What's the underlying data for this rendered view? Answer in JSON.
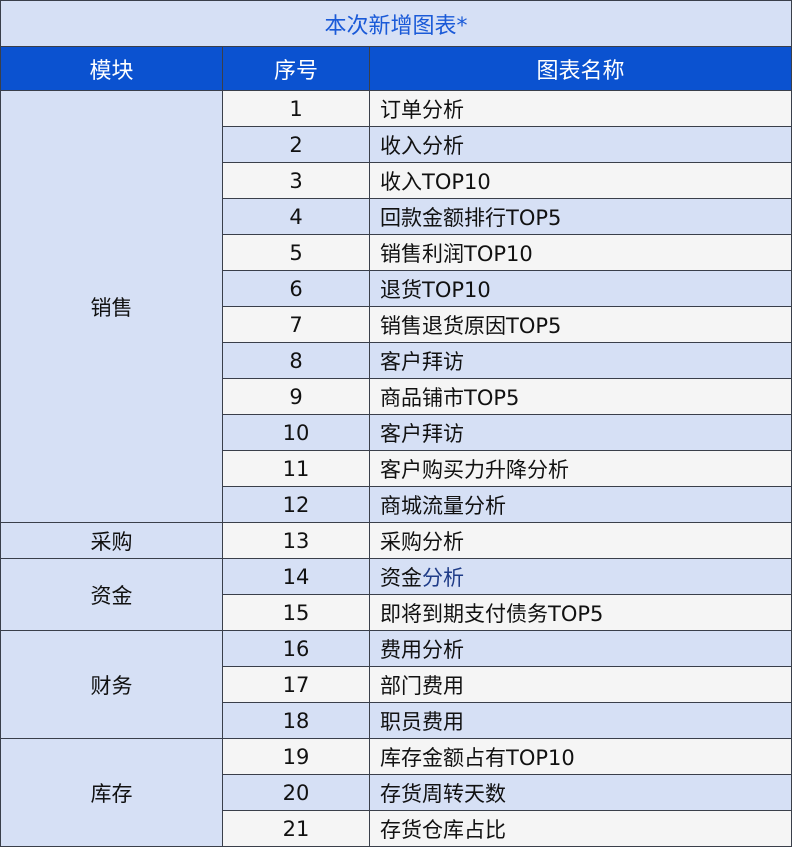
{
  "title": "本次新增图表*",
  "headers": {
    "module": "模块",
    "number": "序号",
    "name": "图表名称"
  },
  "colors": {
    "header_bg": "#0b52d0",
    "band": "#d6e0f5",
    "row_light": "#f5f5f5",
    "title_text": "#1a5ad8",
    "highlight_text": "#1f3c88"
  },
  "modules": [
    {
      "label": "销售",
      "rows": 12
    },
    {
      "label": "采购",
      "rows": 1
    },
    {
      "label": "资金",
      "rows": 2
    },
    {
      "label": "财务",
      "rows": 3
    },
    {
      "label": "库存",
      "rows": 3
    }
  ],
  "rows": [
    {
      "no": "1",
      "name": "订单分析"
    },
    {
      "no": "2",
      "name": "收入分析"
    },
    {
      "no": "3",
      "name": "收入TOP10"
    },
    {
      "no": "4",
      "name": "回款金额排行TOP5"
    },
    {
      "no": "5",
      "name": "销售利润TOP10"
    },
    {
      "no": "6",
      "name": "退货TOP10"
    },
    {
      "no": "7",
      "name": "销售退货原因TOP5"
    },
    {
      "no": "8",
      "name": "客户拜访"
    },
    {
      "no": "9",
      "name": "商品铺市TOP5"
    },
    {
      "no": "10",
      "name": "客户拜访"
    },
    {
      "no": "11",
      "name": "客户购买力升降分析"
    },
    {
      "no": "12",
      "name": "商城流量分析"
    },
    {
      "no": "13",
      "name": "采购分析"
    },
    {
      "no": "14",
      "name": "资金",
      "name_highlight": "分析"
    },
    {
      "no": "15",
      "name": "即将到期支付债务TOP5"
    },
    {
      "no": "16",
      "name": "费用分析"
    },
    {
      "no": "17",
      "name": "部门费用"
    },
    {
      "no": "18",
      "name": "职员费用"
    },
    {
      "no": "19",
      "name": "库存金额占有TOP10"
    },
    {
      "no": "20",
      "name": "存货周转天数"
    },
    {
      "no": "21",
      "name": "存货仓库占比"
    }
  ]
}
